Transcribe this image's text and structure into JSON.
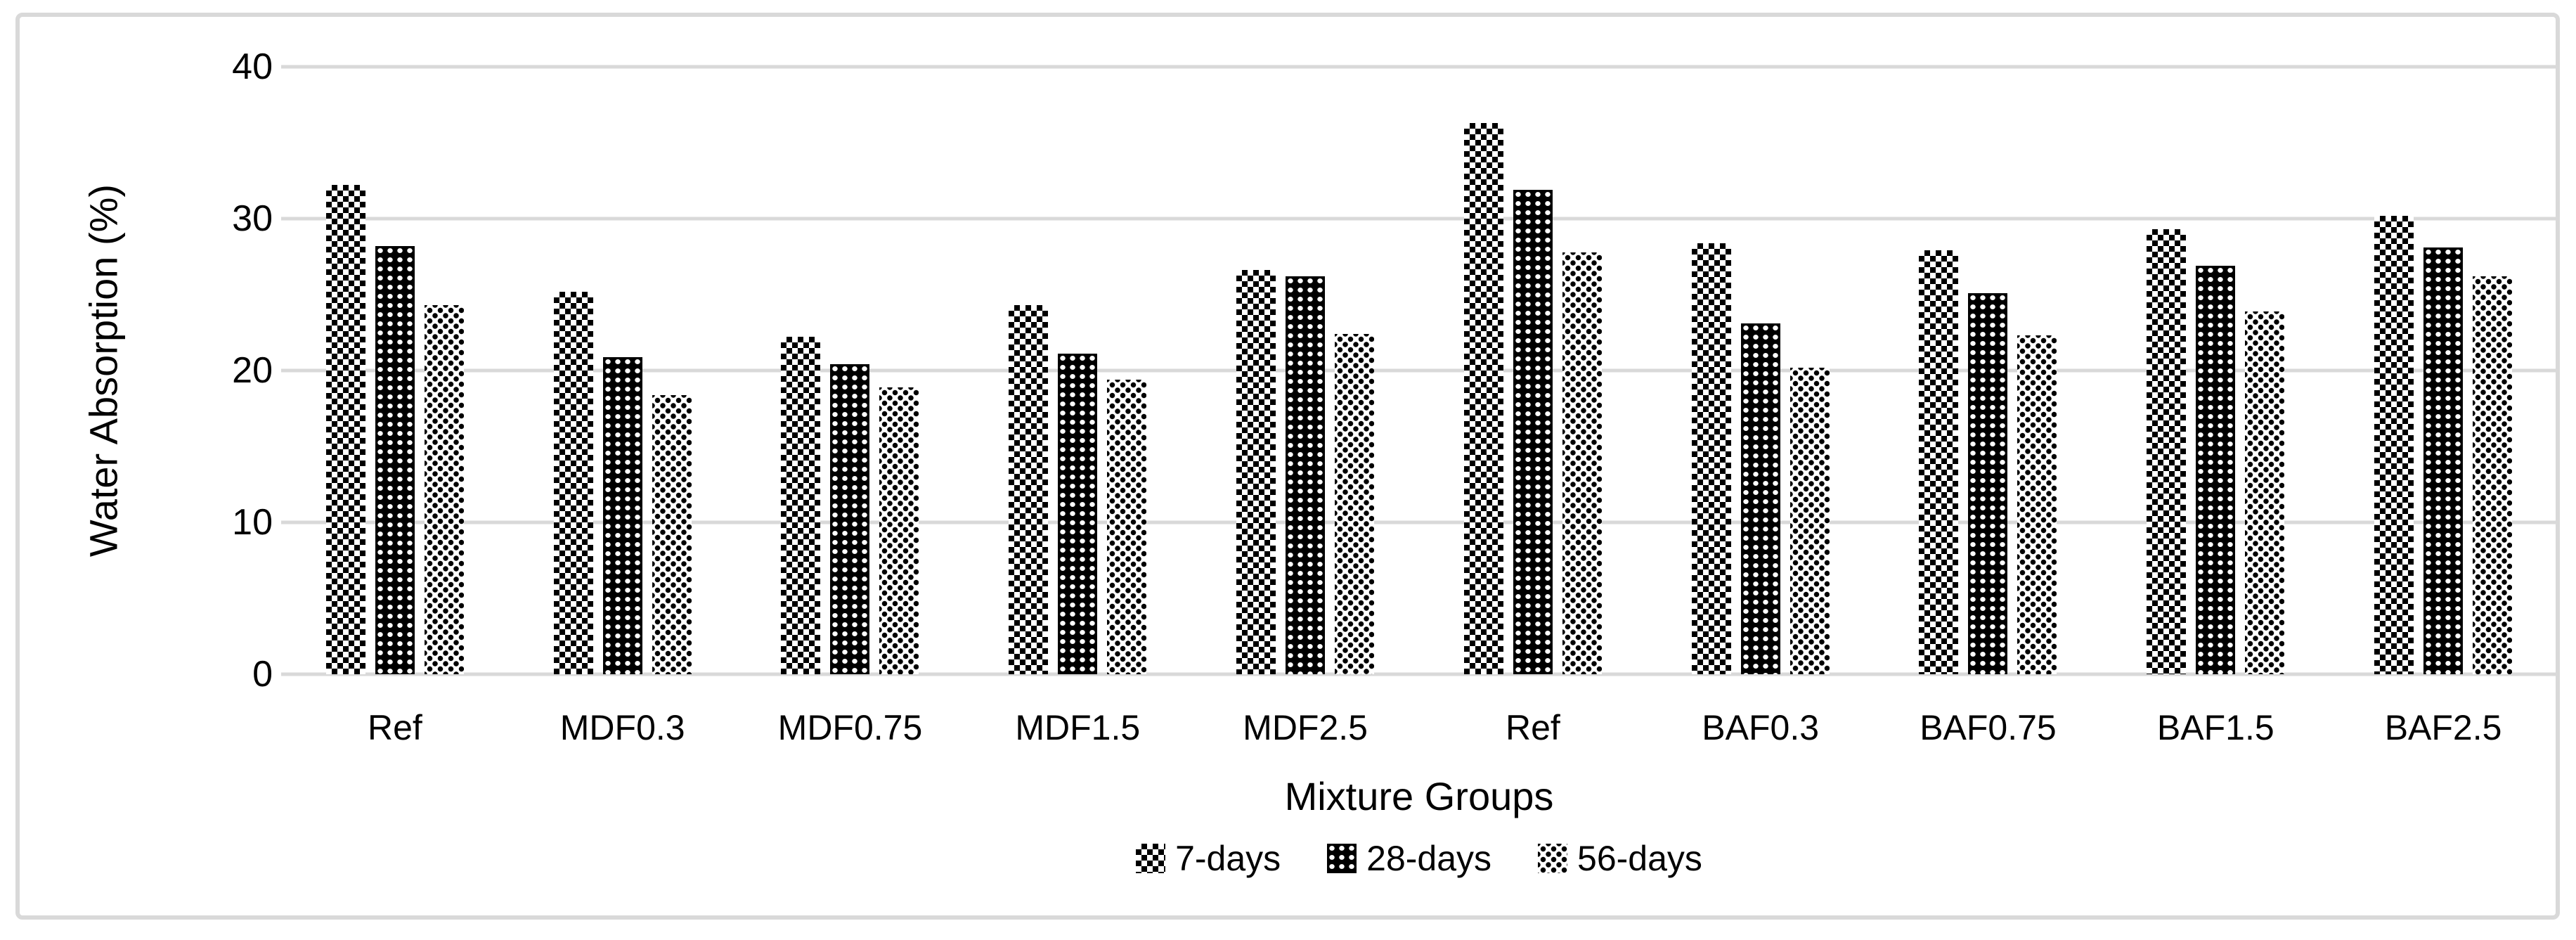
{
  "chart_data": {
    "type": "bar",
    "title": "",
    "xlabel": "Mixture Groups",
    "ylabel": "Water Absorption (%)",
    "ylim": [
      0,
      40
    ],
    "yticks": [
      40,
      30,
      20,
      10,
      0
    ],
    "grid": true,
    "legend_position": "bottom",
    "categories": [
      "Ref",
      "MDF0.3",
      "MDF0.75",
      "MDF1.5",
      "MDF2.5",
      "Ref",
      "BAF0.3",
      "BAF0.75",
      "BAF1.5",
      "BAF2.5"
    ],
    "series": [
      {
        "name": "7-days",
        "pattern": "black-white-checkerboard",
        "values": [
          32.2,
          25.2,
          22.2,
          24.3,
          26.6,
          36.3,
          28.4,
          27.9,
          29.3,
          30.2
        ]
      },
      {
        "name": "28-days",
        "pattern": "white-dot-grid-on-black",
        "values": [
          28.2,
          20.9,
          20.4,
          21.1,
          26.2,
          31.9,
          23.1,
          25.1,
          26.9,
          28.1
        ]
      },
      {
        "name": "56-days",
        "pattern": "sparse-black-dot-grid-on-white",
        "values": [
          24.3,
          18.4,
          18.9,
          19.4,
          22.4,
          27.8,
          20.2,
          22.3,
          23.9,
          26.2
        ]
      }
    ]
  },
  "colors": {
    "gridline": "#d9d9d9",
    "frame_border": "#d9d9d9",
    "text": "#000000",
    "background": "#ffffff"
  }
}
